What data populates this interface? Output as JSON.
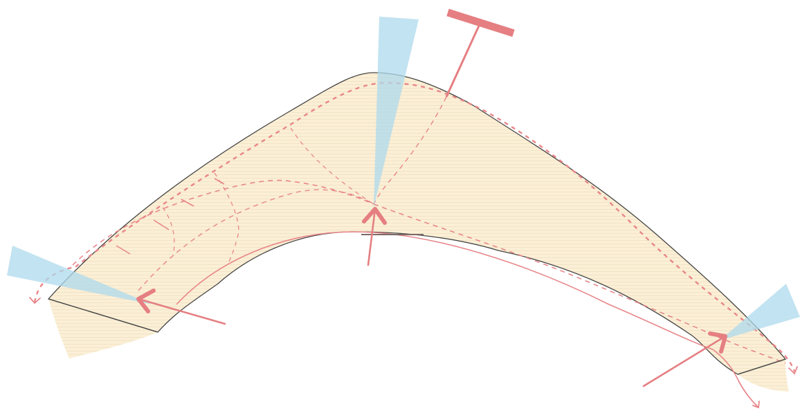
{
  "colors": {
    "body_fill": "#fbefd6",
    "hatch_line": "#f1e3c5",
    "outline": "#454545",
    "load": "#e57f82",
    "stress_path": "#e8868a",
    "cone": "#aed9ec",
    "background": "#ffffff"
  },
  "icons": {
    "force_arrow": "arrow-icon",
    "support": "t-support-icon",
    "cone": "cone-icon"
  }
}
